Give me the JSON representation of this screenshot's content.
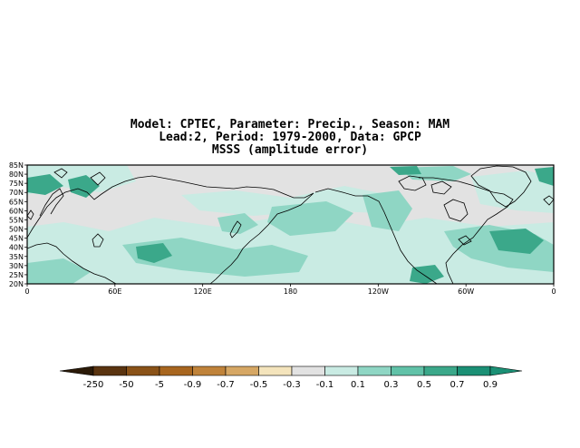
{
  "title": {
    "line1": "Model: CPTEC, Parameter: Precip., Season: MAM",
    "line2": "Lead:2, Period: 1979-2000, Data: GPCP",
    "line3": "MSSS (amplitude error)"
  },
  "map": {
    "projection": "cylindrical equidistant",
    "lat_labels": [
      "85N",
      "80N",
      "75N",
      "70N",
      "65N",
      "60N",
      "55N",
      "50N",
      "45N",
      "40N",
      "35N",
      "30N",
      "25N",
      "20N"
    ],
    "lon_labels": [
      "0",
      "60E",
      "120E",
      "180",
      "120W",
      "60W",
      "0"
    ],
    "lat_range": [
      20,
      85
    ],
    "lon_range": [
      0,
      360
    ]
  },
  "colorbar": {
    "labels": [
      "-250",
      "-50",
      "-5",
      "-0.9",
      "-0.7",
      "-0.5",
      "-0.3",
      "-0.1",
      "0.1",
      "0.3",
      "0.5",
      "0.7",
      "0.9"
    ],
    "colors": [
      "#2b1a08",
      "#5a3410",
      "#8a5218",
      "#a8661f",
      "#c0833a",
      "#d6a764",
      "#f4e4bc",
      "#e2e2e2",
      "#c9ebe3",
      "#8fd6c4",
      "#61c2a8",
      "#3ba88a",
      "#1b9075",
      "#1b9075"
    ]
  },
  "shading": {
    "light": "#c9ebe3",
    "mid": "#8fd6c4",
    "dark": "#3ba88a",
    "neutral": "#e2e2e2"
  }
}
